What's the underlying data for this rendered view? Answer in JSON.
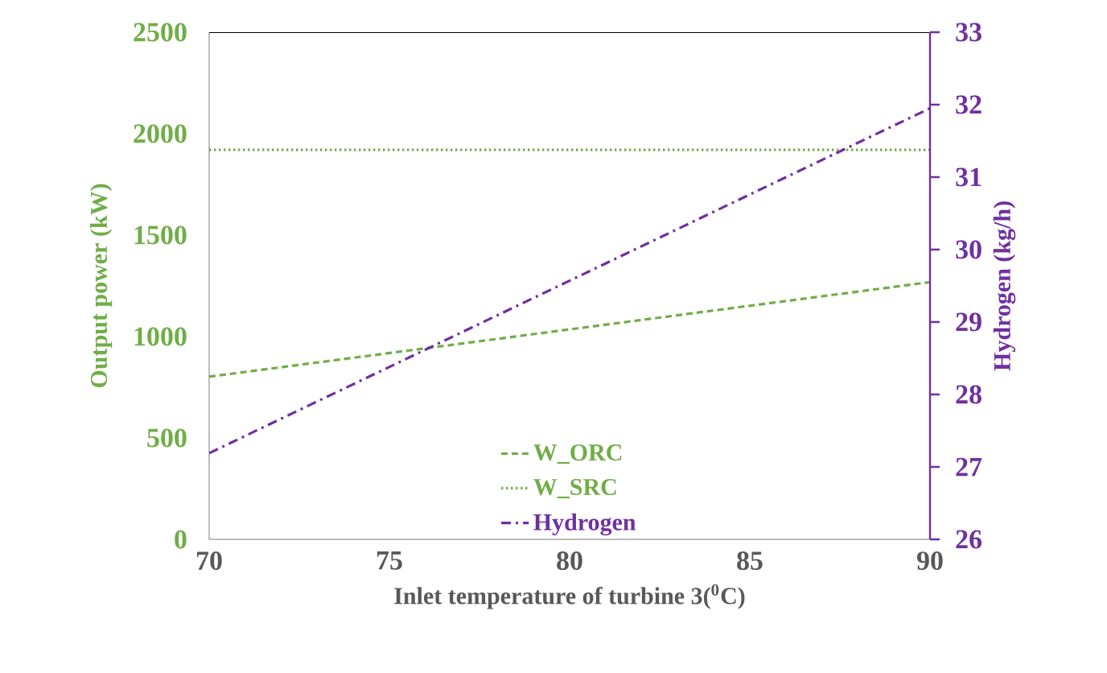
{
  "chart_data": {
    "type": "line",
    "xlabel": "Inlet temperature of turbine 3($^{0}$C)",
    "ylabel": "Output power (kW)",
    "y2label": "Hydrogen (kg/h)",
    "x": [
      70,
      90
    ],
    "xlim": [
      70,
      90
    ],
    "xticks": [
      70,
      75,
      80,
      85,
      90
    ],
    "ylim": [
      0,
      2500
    ],
    "yticks": [
      0,
      500,
      1000,
      1500,
      2000,
      2500
    ],
    "y2lim": [
      26,
      33
    ],
    "y2ticks": [
      26,
      27,
      28,
      29,
      30,
      31,
      32,
      33
    ],
    "legend": "bottom",
    "marker": "none",
    "series": [
      {
        "name": "W_ORC",
        "color": "#70ad47",
        "line_style": "dashed",
        "values": [
          802,
          1268
        ]
      },
      {
        "name": "W_SRC",
        "color": "#70ad47",
        "line_style": "dotted",
        "values": [
          1920,
          1920
        ]
      },
      {
        "name": "Hydrogen",
        "color": "#7030a0",
        "line_style": "dashdot",
        "axis": "y2",
        "values": [
          27.19,
          31.95
        ]
      }
    ]
  }
}
